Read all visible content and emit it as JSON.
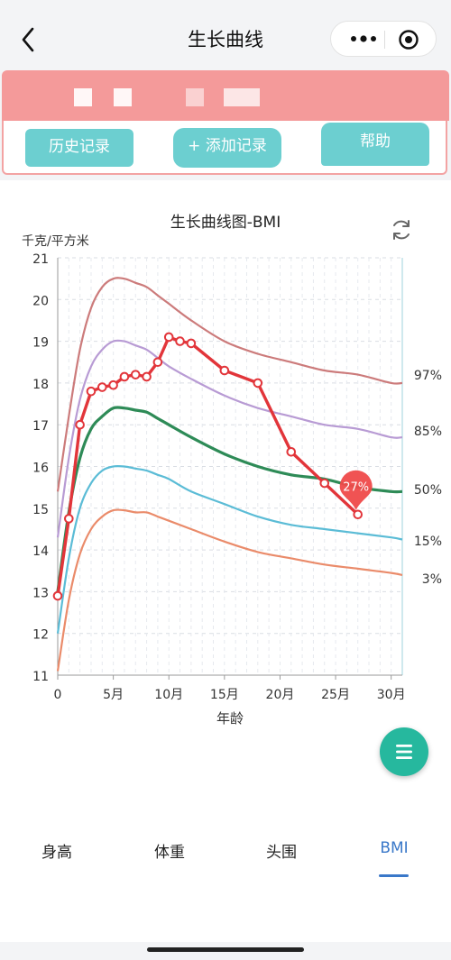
{
  "nav": {
    "title": "生长曲线"
  },
  "toolbar": {
    "history_label": "历史记录",
    "add_label": "+ 添加记录",
    "help_label": "帮助"
  },
  "tabs": [
    {
      "label": "身高",
      "active": false
    },
    {
      "label": "体重",
      "active": false
    },
    {
      "label": "头围",
      "active": false
    },
    {
      "label": "BMI",
      "active": true
    }
  ],
  "colors": {
    "accent": "#3a78c9",
    "button": "#6ccfd0",
    "banner": "#f49a9a",
    "fab": "#26b89e",
    "child": "#e2353a"
  },
  "icons": {
    "back": "chevron-left-icon",
    "more": "more-dots-icon",
    "close": "target-icon",
    "refresh": "refresh-icon",
    "menu": "menu-icon"
  },
  "chart_data": {
    "type": "line",
    "title": "生长曲线图-BMI",
    "ylabel": "千克/平方米",
    "xlabel": "年龄",
    "xlim": [
      0,
      31
    ],
    "ylim": [
      11,
      21
    ],
    "x_ticks": [
      {
        "value": 0,
        "label": "0"
      },
      {
        "value": 5,
        "label": "5月"
      },
      {
        "value": 10,
        "label": "10月"
      },
      {
        "value": 15,
        "label": "15月"
      },
      {
        "value": 20,
        "label": "20月"
      },
      {
        "value": 25,
        "label": "25月"
      },
      {
        "value": 30,
        "label": "30月"
      }
    ],
    "y_ticks": [
      11,
      12,
      13,
      14,
      15,
      16,
      17,
      18,
      19,
      20,
      21
    ],
    "grid": true,
    "series": [
      {
        "name": "97%",
        "color": "#cc7b7b",
        "x": [
          0,
          1,
          2,
          3,
          4,
          5,
          6,
          7,
          8,
          9,
          10,
          12,
          15,
          18,
          21,
          24,
          27,
          30,
          31
        ],
        "y": [
          15.4,
          17.2,
          18.8,
          19.8,
          20.3,
          20.5,
          20.5,
          20.4,
          20.3,
          20.1,
          19.9,
          19.5,
          19.0,
          18.7,
          18.5,
          18.3,
          18.2,
          18.0,
          18.0
        ]
      },
      {
        "name": "85%",
        "color": "#b89bd4",
        "x": [
          0,
          1,
          2,
          3,
          4,
          5,
          6,
          7,
          8,
          9,
          10,
          12,
          15,
          18,
          21,
          24,
          27,
          30,
          31
        ],
        "y": [
          14.3,
          16.2,
          17.6,
          18.4,
          18.8,
          19.0,
          19.0,
          18.9,
          18.8,
          18.6,
          18.4,
          18.1,
          17.7,
          17.4,
          17.2,
          17.0,
          16.9,
          16.7,
          16.7
        ]
      },
      {
        "name": "50%",
        "color": "#2e8b57",
        "x": [
          0,
          1,
          2,
          3,
          4,
          5,
          6,
          7,
          8,
          9,
          10,
          12,
          15,
          18,
          21,
          24,
          27,
          30,
          31
        ],
        "y": [
          13.0,
          14.9,
          16.2,
          16.9,
          17.2,
          17.4,
          17.4,
          17.35,
          17.3,
          17.15,
          17.0,
          16.7,
          16.3,
          16.0,
          15.8,
          15.7,
          15.5,
          15.4,
          15.4
        ]
      },
      {
        "name": "15%",
        "color": "#5bbcd6",
        "x": [
          0,
          1,
          2,
          3,
          4,
          5,
          6,
          7,
          8,
          9,
          10,
          12,
          15,
          18,
          21,
          24,
          27,
          30,
          31
        ],
        "y": [
          12.0,
          13.8,
          15.0,
          15.6,
          15.9,
          16.0,
          16.0,
          15.95,
          15.9,
          15.8,
          15.7,
          15.4,
          15.1,
          14.8,
          14.6,
          14.5,
          14.4,
          14.3,
          14.25
        ]
      },
      {
        "name": "3%",
        "color": "#ea8b6a",
        "x": [
          0,
          1,
          2,
          3,
          4,
          5,
          6,
          7,
          8,
          9,
          10,
          12,
          15,
          18,
          21,
          24,
          27,
          30,
          31
        ],
        "y": [
          11.1,
          12.8,
          13.9,
          14.5,
          14.8,
          14.95,
          14.95,
          14.9,
          14.9,
          14.8,
          14.7,
          14.5,
          14.2,
          13.95,
          13.8,
          13.65,
          13.55,
          13.45,
          13.4
        ]
      }
    ],
    "child": {
      "color": "#e2353a",
      "x": [
        0,
        1,
        2,
        3,
        4,
        5,
        6,
        7,
        8,
        9,
        10,
        11,
        12,
        15,
        18,
        21,
        24,
        27
      ],
      "y": [
        12.9,
        14.75,
        17.0,
        17.8,
        17.9,
        17.95,
        18.15,
        18.2,
        18.15,
        18.5,
        19.1,
        19.0,
        18.95,
        18.3,
        18.0,
        16.35,
        15.6,
        14.85
      ]
    },
    "marker": {
      "label": "27%",
      "x": 27,
      "y": 14.85
    }
  }
}
